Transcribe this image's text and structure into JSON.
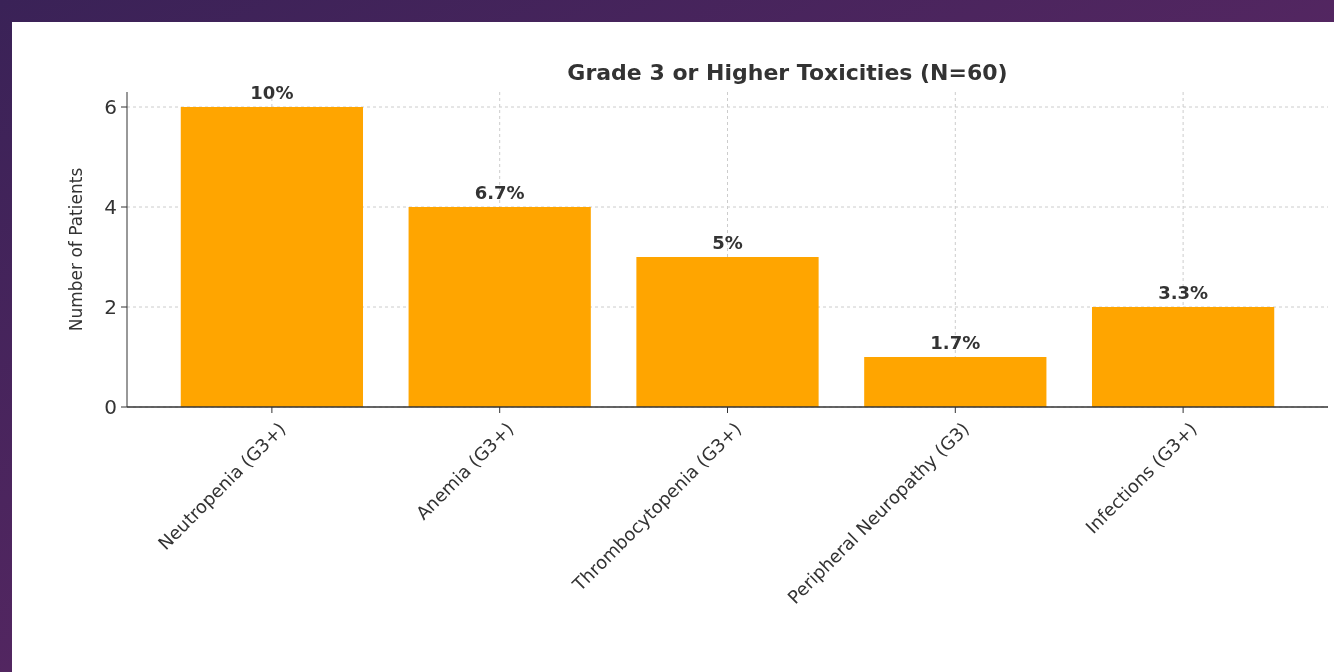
{
  "chart_data": {
    "type": "bar",
    "title": "Grade 3 or Higher Toxicities (N=60)",
    "ylabel": "Number of Patients",
    "categories": [
      "Neutropenia (G3+)",
      "Anemia (G3+)",
      "Thrombocytopenia (G3+)",
      "Peripheral Neuropathy (G3)",
      "Infections (G3+)"
    ],
    "values": [
      6,
      4,
      3,
      1,
      2
    ],
    "annotations": [
      {
        "text": "10%",
        "x": "Neutropenia (G3+)",
        "y": 6
      },
      {
        "text": "6.7%",
        "x": "Anemia (G3+)",
        "y": 4
      },
      {
        "text": "5%",
        "x": "Thrombocytopenia (G3+)",
        "y": 3
      },
      {
        "text": "1.7%",
        "x": "Peripheral Neuropathy (G3)",
        "y": 1
      },
      {
        "text": "3.3%",
        "x": "Infections (G3+)",
        "y": 2
      }
    ],
    "color": "#ffa500",
    "ylim": [
      0,
      6.3
    ],
    "yticks": [
      0,
      2,
      4,
      6
    ],
    "grid": true
  }
}
